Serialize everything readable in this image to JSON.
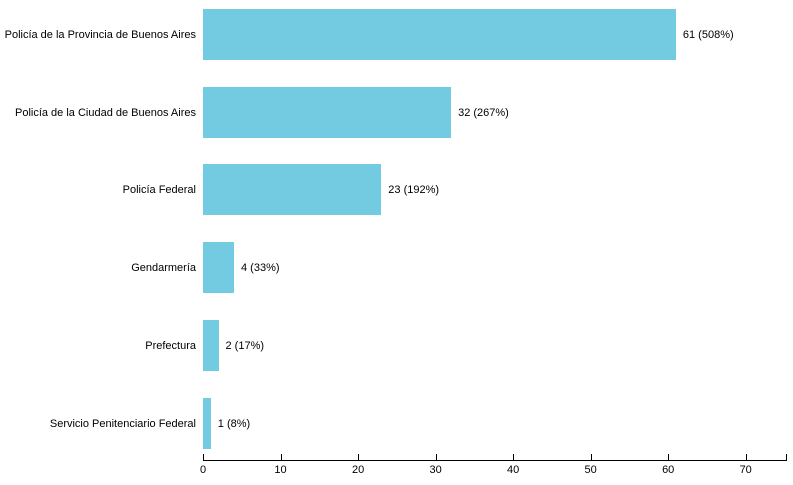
{
  "page": {
    "background": "#ffffff"
  },
  "chart_data": {
    "type": "bar",
    "orientation": "horizontal",
    "title": "",
    "xlabel": "",
    "ylabel": "",
    "categories": [
      "Policía de la Provincia de Buenos Aires",
      "Policía de la Ciudad de Buenos Aires",
      "Policía Federal",
      "Gendarmería",
      "Prefectura",
      "Servicio Penitenciario Federal"
    ],
    "values": [
      61,
      32,
      23,
      4,
      2,
      1
    ],
    "value_labels": [
      "61 (508%)",
      "32 (267%)",
      "23 (192%)",
      "4 (33%)",
      "2 (17%)",
      "1 (8%)"
    ],
    "x_ticks": [
      "0",
      "10",
      "20",
      "30",
      "40",
      "50",
      "60",
      "70"
    ],
    "x_tick_values": [
      0,
      10,
      20,
      30,
      40,
      50,
      60,
      70
    ],
    "xlim": [
      0,
      75.2
    ],
    "axis_end_tick": true,
    "grid": false,
    "legend": "none",
    "bar_color": "#72CBE1",
    "axis_color": "#000000",
    "text_color": "#000000"
  }
}
